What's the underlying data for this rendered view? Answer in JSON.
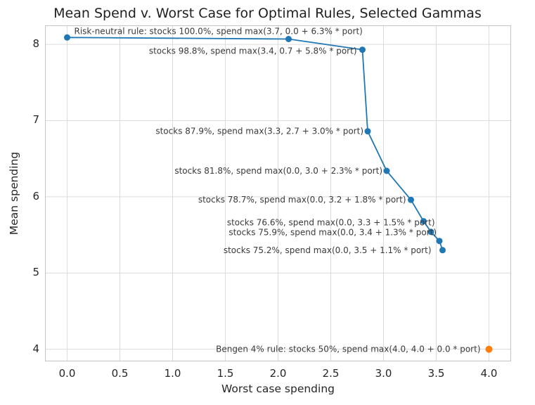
{
  "chart_data": {
    "type": "line",
    "title": "Mean Spend v. Worst Case for Optimal Rules, Selected Gammas",
    "xlabel": "Worst case spending",
    "ylabel": "Mean spending",
    "xlim": [
      -0.21,
      4.21
    ],
    "ylim": [
      3.84,
      8.25
    ],
    "xticks": [
      0.0,
      0.5,
      1.0,
      1.5,
      2.0,
      2.5,
      3.0,
      3.5,
      4.0
    ],
    "xtick_labels": [
      "0.0",
      "0.5",
      "1.0",
      "1.5",
      "2.0",
      "2.5",
      "3.0",
      "3.5",
      "4.0"
    ],
    "yticks": [
      4,
      5,
      6,
      7,
      8
    ],
    "ytick_labels": [
      "4",
      "5",
      "6",
      "7",
      "8"
    ],
    "grid": true,
    "legend": "none",
    "colors": {
      "grid": "#dcdcdc",
      "border": "#c7c7c7",
      "text": "#262626",
      "annotation": "#3a3a3a",
      "blue": "#1f77b4",
      "orange": "#ff7f0e"
    },
    "series": [
      {
        "name": "optimal-rules",
        "color": "#1f77b4",
        "marker_radius": 4.5,
        "points": [
          {
            "x": 0.0,
            "y": 8.09,
            "label": "Risk-neutral rule: stocks 100.0%, spend max(3.7, 0.0 + 6.3% * port)",
            "anchor": "start",
            "dx": 10,
            "dy": -5
          },
          {
            "x": 2.1,
            "y": 8.07
          },
          {
            "x": 2.8,
            "y": 7.93,
            "label": "stocks 98.8%, spend max(3.4, 0.7 + 5.8% * port)",
            "anchor": "end",
            "dx": -8,
            "dy": 6
          },
          {
            "x": 2.85,
            "y": 6.86,
            "label": "stocks 87.9%, spend max(3.3, 2.7 + 3.0% * port)",
            "anchor": "end",
            "dx": -6,
            "dy": 4
          },
          {
            "x": 3.03,
            "y": 6.34,
            "label": "stocks 81.8%, spend max(0.0, 3.0 + 2.3% * port)",
            "anchor": "end",
            "dx": -6,
            "dy": 4
          },
          {
            "x": 3.26,
            "y": 5.96,
            "label": "stocks 78.7%, spend max(0.0, 3.2 + 1.8% * port)",
            "anchor": "end",
            "dx": -7,
            "dy": 4
          },
          {
            "x": 3.38,
            "y": 5.68,
            "label": "stocks 76.6%, spend max(0.0, 3.3 + 1.5% * port)",
            "anchor": "end",
            "dx": 16,
            "dy": 6
          },
          {
            "x": 3.45,
            "y": 5.54,
            "label": "stocks 75.9%, spend max(0.0, 3.4 + 1.3% * port)",
            "anchor": "end",
            "dx": 8,
            "dy": 5
          },
          {
            "x": 3.53,
            "y": 5.42
          },
          {
            "x": 3.56,
            "y": 5.3,
            "label": "stocks 75.2%, spend max(0.0, 3.5 + 1.1% * port)",
            "anchor": "end",
            "dx": -16,
            "dy": 4
          }
        ]
      },
      {
        "name": "bengen-rule",
        "color": "#ff7f0e",
        "marker_radius": 5,
        "points": [
          {
            "x": 4.0,
            "y": 4.0,
            "label": "Bengen 4% rule: stocks 50%, spend max(4.0, 4.0 + 0.0 * port)",
            "anchor": "end",
            "dx": -12,
            "dy": 4
          }
        ]
      }
    ]
  }
}
